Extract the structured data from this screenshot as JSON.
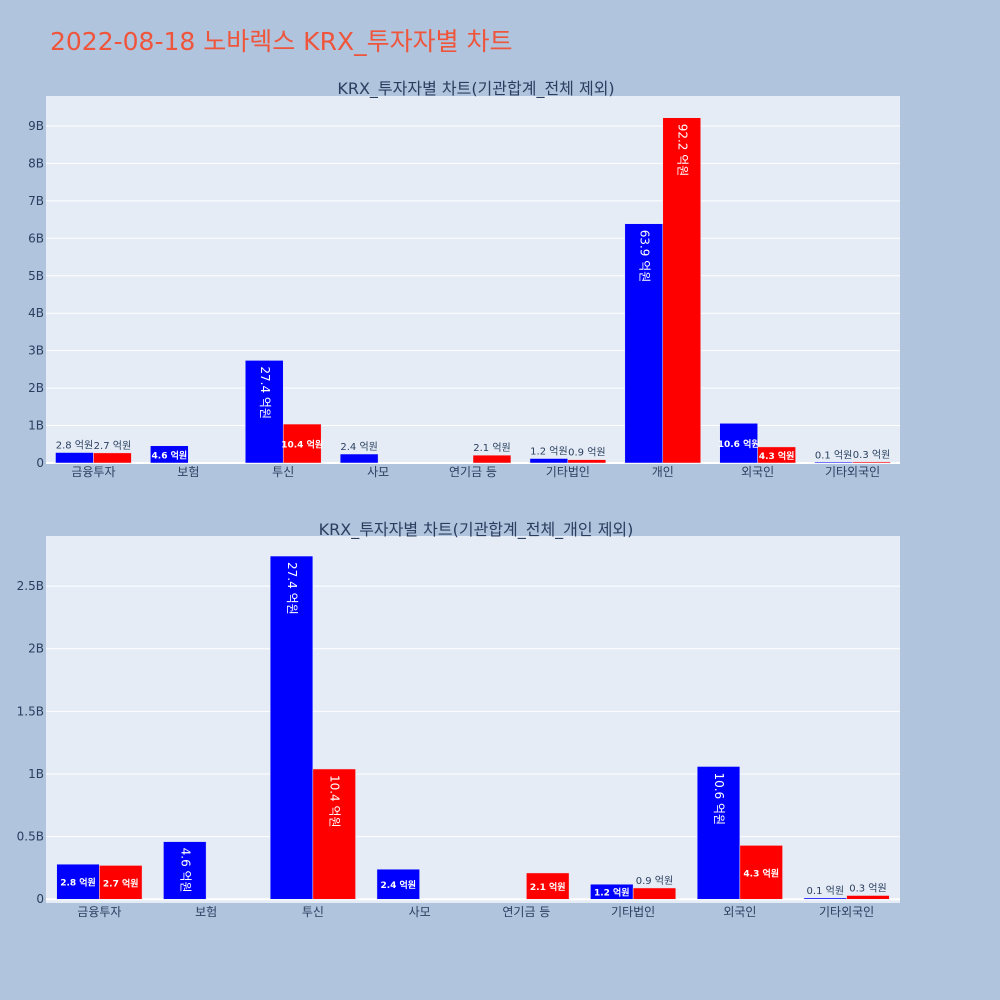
{
  "page_title": "2022-08-18 노바렉스 KRX_투자자별 차트",
  "colors": {
    "buy": "#0000ff",
    "sell": "#ff0000",
    "title": "#ef553b",
    "plot_bg": "#e5ecf6",
    "page_bg": "#b0c4de"
  },
  "chart_data": [
    {
      "type": "bar",
      "title": "KRX_투자자별 차트(기관합계_전체 제외)",
      "categories": [
        "금융투자",
        "보험",
        "투신",
        "사모",
        "연기금 등",
        "기타법인",
        "개인",
        "외국인",
        "기타외국인"
      ],
      "series": [
        {
          "values": [
            280000000,
            460000000,
            2740000000,
            240000000,
            null,
            120000000,
            6390000000,
            1060000000,
            10000000
          ],
          "labels": [
            "2.8 억원",
            "4.6 억원",
            "27.4 억원",
            "2.4 억원",
            "",
            "1.2 억원",
            "63.9 억원",
            "10.6 억원",
            "0.1 억원"
          ]
        },
        {
          "values": [
            270000000,
            null,
            1040000000,
            null,
            210000000,
            90000000,
            9220000000,
            430000000,
            30000000
          ],
          "labels": [
            "2.7 억원",
            "",
            "10.4 억원",
            "",
            "2.1 억원",
            "0.9 억원",
            "92.2 억원",
            "4.3 억원",
            "0.3 억원"
          ]
        }
      ],
      "ylim": [
        0,
        9800000000
      ],
      "yticks": [
        0,
        1000000000,
        2000000000,
        3000000000,
        4000000000,
        5000000000,
        6000000000,
        7000000000,
        8000000000,
        9000000000
      ],
      "ytick_labels": [
        "0",
        "1B",
        "2B",
        "3B",
        "4B",
        "5B",
        "6B",
        "7B",
        "8B",
        "9B"
      ],
      "grid": true
    },
    {
      "type": "bar",
      "title": "KRX_투자자별 차트(기관합계_전체_개인 제외)",
      "categories": [
        "금융투자",
        "보험",
        "투신",
        "사모",
        "연기금 등",
        "기타법인",
        "외국인",
        "기타외국인"
      ],
      "series": [
        {
          "values": [
            280000000,
            460000000,
            2740000000,
            240000000,
            null,
            120000000,
            1060000000,
            10000000
          ],
          "labels": [
            "2.8 억원",
            "4.6 억원",
            "27.4 억원",
            "2.4 억원",
            "",
            "1.2 억원",
            "10.6 억원",
            "0.1 억원"
          ]
        },
        {
          "values": [
            270000000,
            null,
            1040000000,
            null,
            210000000,
            90000000,
            430000000,
            30000000
          ],
          "labels": [
            "2.7 억원",
            "",
            "10.4 억원",
            "",
            "2.1 억원",
            "0.9 억원",
            "4.3 억원",
            "0.3 억원"
          ]
        }
      ],
      "ylim": [
        -30000000,
        2900000000
      ],
      "yticks": [
        0,
        500000000,
        1000000000,
        1500000000,
        2000000000,
        2500000000
      ],
      "ytick_labels": [
        "0",
        "0.5B",
        "1B",
        "1.5B",
        "2B",
        "2.5B"
      ],
      "grid": true
    }
  ]
}
